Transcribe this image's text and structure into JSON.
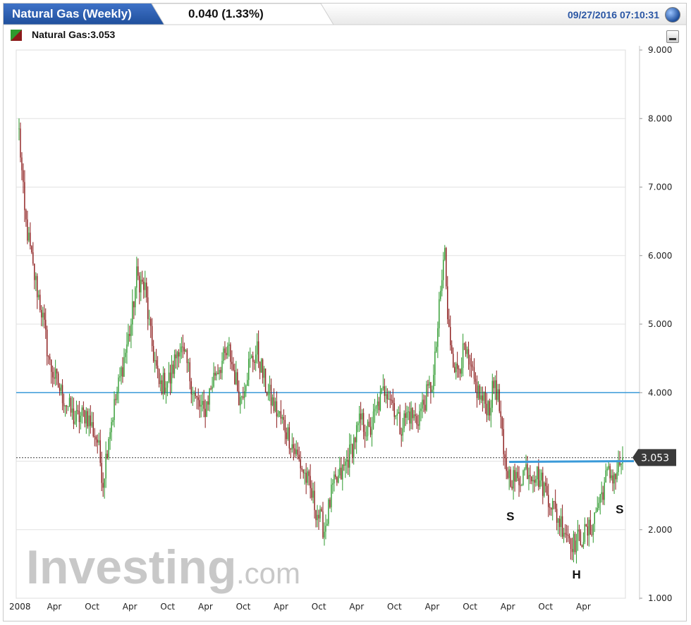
{
  "header": {
    "title": "Natural Gas (Weekly)",
    "change": "0.040 (1.33%)",
    "timestamp": "09/27/2016 07:10:31"
  },
  "legend": {
    "label": "Natural Gas:3.053"
  },
  "watermark": {
    "brand": "Investing",
    "suffix": ".com"
  },
  "colors": {
    "up": "#2e9a2e",
    "down": "#8b1a1a",
    "line": "#3a9ad9",
    "tab": "#1f4f9c",
    "label_bg": "#3a3a3a"
  },
  "chart_data": {
    "type": "candlestick",
    "y_axis": {
      "min": 1.0,
      "max": 9.0,
      "ticks": [
        "9.000",
        "8.000",
        "7.000",
        "6.000",
        "5.000",
        "4.000",
        "3.000",
        "2.000",
        "1.000"
      ],
      "position": "right"
    },
    "x_axis": {
      "ticks": [
        "2008",
        "Apr",
        "Oct",
        "Apr",
        "Oct",
        "Apr",
        "Oct",
        "Apr",
        "Oct",
        "Apr",
        "Oct",
        "Apr",
        "Oct",
        "Apr",
        "Oct",
        "Apr"
      ]
    },
    "current_value": 3.053,
    "current_label": "3.053",
    "horizontal_lines": [
      {
        "value": 4.0,
        "color": "#3a9ad9",
        "style": "solid"
      },
      {
        "value": 3.05,
        "color": "#444444",
        "style": "dotted"
      }
    ],
    "neckline": {
      "from_value": 2.99,
      "to_value": 3.0
    },
    "annotations": [
      {
        "text": "S",
        "value": 2.2
      },
      {
        "text": "H",
        "value": 1.35
      },
      {
        "text": "S",
        "value": 2.3
      }
    ],
    "price_path": [
      [
        0,
        7.8
      ],
      [
        4,
        6.6
      ],
      [
        10,
        5.8
      ],
      [
        16,
        5.2
      ],
      [
        22,
        4.4
      ],
      [
        30,
        4.0
      ],
      [
        40,
        3.6
      ],
      [
        48,
        3.7
      ],
      [
        56,
        3.3
      ],
      [
        60,
        2.7
      ],
      [
        64,
        3.4
      ],
      [
        72,
        4.2
      ],
      [
        80,
        5.0
      ],
      [
        84,
        5.7
      ],
      [
        90,
        5.5
      ],
      [
        94,
        4.8
      ],
      [
        100,
        4.1
      ],
      [
        108,
        4.2
      ],
      [
        114,
        4.7
      ],
      [
        120,
        4.4
      ],
      [
        126,
        3.9
      ],
      [
        132,
        3.7
      ],
      [
        140,
        4.3
      ],
      [
        150,
        4.6
      ],
      [
        158,
        3.9
      ],
      [
        164,
        4.4
      ],
      [
        170,
        4.6
      ],
      [
        176,
        4.1
      ],
      [
        182,
        3.8
      ],
      [
        190,
        3.5
      ],
      [
        200,
        3.0
      ],
      [
        206,
        2.7
      ],
      [
        212,
        2.3
      ],
      [
        218,
        2.0
      ],
      [
        224,
        2.6
      ],
      [
        230,
        2.8
      ],
      [
        236,
        3.1
      ],
      [
        244,
        3.6
      ],
      [
        250,
        3.4
      ],
      [
        256,
        3.8
      ],
      [
        262,
        4.1
      ],
      [
        268,
        3.8
      ],
      [
        272,
        3.5
      ],
      [
        278,
        3.7
      ],
      [
        284,
        3.6
      ],
      [
        290,
        3.9
      ],
      [
        296,
        4.2
      ],
      [
        300,
        5.2
      ],
      [
        304,
        6.1
      ],
      [
        306,
        5.0
      ],
      [
        312,
        4.3
      ],
      [
        318,
        4.6
      ],
      [
        324,
        4.2
      ],
      [
        330,
        3.9
      ],
      [
        336,
        3.8
      ],
      [
        340,
        4.2
      ],
      [
        344,
        3.6
      ],
      [
        346,
        3.0
      ],
      [
        350,
        2.8
      ],
      [
        356,
        2.7
      ],
      [
        362,
        2.9
      ],
      [
        370,
        2.8
      ],
      [
        378,
        2.5
      ],
      [
        384,
        2.2
      ],
      [
        390,
        2.0
      ],
      [
        396,
        1.8
      ],
      [
        402,
        1.9
      ],
      [
        408,
        2.0
      ],
      [
        414,
        2.4
      ],
      [
        420,
        2.8
      ],
      [
        426,
        2.8
      ],
      [
        431,
        3.05
      ]
    ]
  }
}
